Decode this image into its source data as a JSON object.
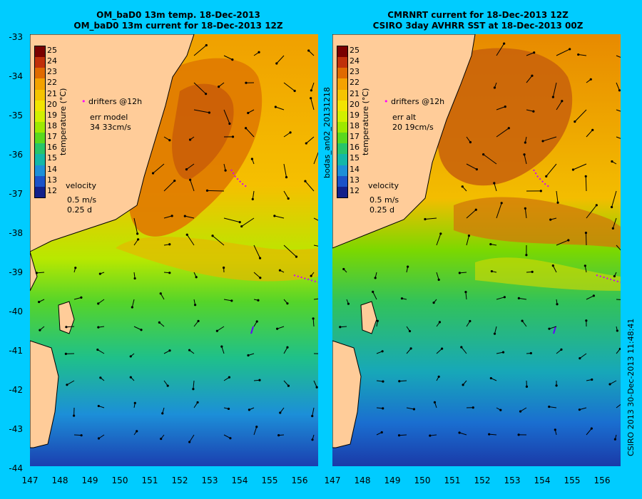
{
  "titles": {
    "left": [
      "OM_baD0 13m temp. 18-Dec-2013",
      "OM_baD0 13m current for 18-Dec-2013 12Z"
    ],
    "right": [
      "CMRNRT current for 18-Dec-2013 12Z",
      "CSIRO 3day AVHRR SST at 18-Dec-2013 00Z"
    ]
  },
  "axes": {
    "lat_ticks": [
      "-33",
      "-34",
      "-35",
      "-36",
      "-37",
      "-38",
      "-39",
      "-40",
      "-41",
      "-42",
      "-43",
      "-44"
    ],
    "lon_ticks": [
      "147",
      "148",
      "149",
      "150",
      "151",
      "152",
      "153",
      "154",
      "155",
      "156"
    ]
  },
  "colorbar": {
    "ticks": [
      "25",
      "24",
      "23",
      "22",
      "21",
      "20",
      "19",
      "18",
      "17",
      "16",
      "15",
      "14",
      "13",
      "12"
    ],
    "label": "temperature (°C)",
    "colors": [
      "#7a0000",
      "#c0300a",
      "#e06a00",
      "#f4a200",
      "#f5c400",
      "#f2e400",
      "#d2ef00",
      "#9ee800",
      "#5ad81e",
      "#27c46a",
      "#13b7a8",
      "#1d8fd8",
      "#1c52c8",
      "#12208a"
    ]
  },
  "left_panel": {
    "legend_drifters": "drifters @12h",
    "err_label": "err model",
    "err_values": "34 33cm/s",
    "velocity_label": "velocity",
    "velocity_scale": "0.5 m/s",
    "velocity_time": "0.25 d"
  },
  "right_panel": {
    "legend_drifters": "drifters @12h",
    "err_label": "err alt",
    "err_values": "20 19cm/s",
    "velocity_label": "velocity",
    "velocity_scale": "0.5 m/s",
    "velocity_time": "0.25 d"
  },
  "side_text": {
    "run_id": "bodas_an02_20131218",
    "credit": "CSIRO 2013   30-Dec-2013 11:48:41"
  }
}
